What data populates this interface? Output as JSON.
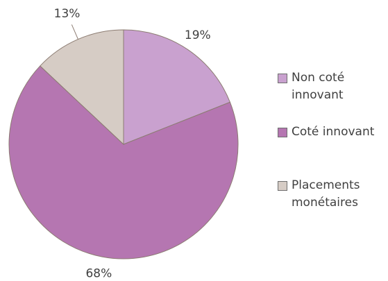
{
  "chart_data": {
    "type": "pie",
    "categories": [
      "Non coté innovant",
      "Coté innovant",
      "Placements monétaires"
    ],
    "values": [
      19,
      68,
      13
    ],
    "value_labels": [
      "19%",
      "68%",
      "13%"
    ],
    "colors": [
      "#c9a1cf",
      "#b576b1",
      "#d6ccc5"
    ],
    "legend": "right"
  }
}
